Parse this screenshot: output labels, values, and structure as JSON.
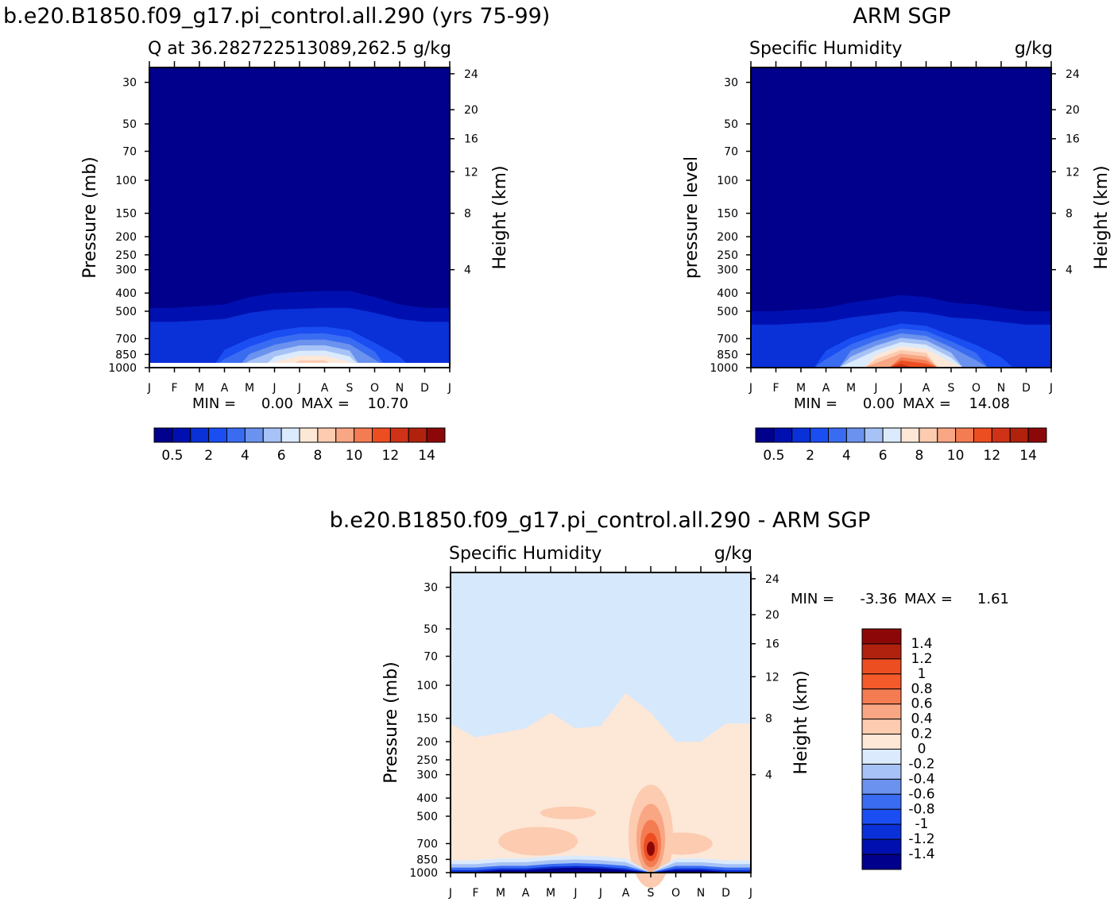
{
  "figure": {
    "title_left": "b.e20.B1850.f09_g17.pi_control.all.290 (yrs 75-99)",
    "title_right": "ARM SGP",
    "title_diff": "b.e20.B1850.f09_g17.pi_control.all.290 - ARM SGP"
  },
  "chart_data": [
    {
      "type": "heatmap",
      "panel": "model",
      "title": "Q at 36.282722513089,262.5",
      "units_label": "g/kg",
      "ylabel_left": "Pressure (mb)",
      "ylabel_right": "Height (km)",
      "x_ticks": [
        "J",
        "F",
        "M",
        "A",
        "M",
        "J",
        "J",
        "A",
        "S",
        "O",
        "N",
        "D",
        "J"
      ],
      "y_ticks": [
        "30",
        "50",
        "70",
        "100",
        "150",
        "200",
        "250",
        "300",
        "400",
        "500",
        "700",
        "850",
        "1000"
      ],
      "height_ticks": [
        "24",
        "20",
        "16",
        "12",
        "8",
        "4"
      ],
      "min_label": "MIN =",
      "min_value": "0.00",
      "max_label": "MAX =",
      "max_value": "10.70",
      "colorbar": {
        "labels": [
          "0.5",
          "2",
          "4",
          "6",
          "8",
          "10",
          "12",
          "14"
        ],
        "colors": [
          "#00008c",
          "#0010b0",
          "#0a30d8",
          "#1a4ef2",
          "#3a6cf2",
          "#6a92ee",
          "#a6c2f6",
          "#dbeafc",
          "#fde7d7",
          "#fccbb0",
          "#f8a684",
          "#f47c52",
          "#ec4e22",
          "#cf3216",
          "#b0220e",
          "#8c0808"
        ]
      },
      "contour_top_pressure_by_month": [
        480,
        480,
        470,
        460,
        420,
        400,
        395,
        390,
        390,
        420,
        460,
        480,
        480
      ],
      "near_surface_max_by_month": [
        1.5,
        2,
        3,
        5,
        7,
        9,
        10.5,
        10.5,
        9,
        6,
        4,
        2,
        1.5
      ]
    },
    {
      "type": "heatmap",
      "panel": "observed",
      "title": "Specific Humidity",
      "units_label": "g/kg",
      "ylabel_left": "pressure level",
      "ylabel_right": "Height (km)",
      "x_ticks": [
        "J",
        "F",
        "M",
        "A",
        "M",
        "J",
        "J",
        "A",
        "S",
        "O",
        "N",
        "D",
        "J"
      ],
      "y_ticks": [
        "30",
        "50",
        "70",
        "100",
        "150",
        "200",
        "250",
        "300",
        "400",
        "500",
        "700",
        "850",
        "1000"
      ],
      "height_ticks": [
        "24",
        "20",
        "16",
        "12",
        "8",
        "4"
      ],
      "min_label": "MIN =",
      "min_value": "0.00",
      "max_label": "MAX =",
      "max_value": "14.08",
      "colorbar": {
        "labels": [
          "0.5",
          "2",
          "4",
          "6",
          "8",
          "10",
          "12",
          "14"
        ],
        "colors": [
          "#00008c",
          "#0010b0",
          "#0a30d8",
          "#1a4ef2",
          "#3a6cf2",
          "#6a92ee",
          "#a6c2f6",
          "#dbeafc",
          "#fde7d7",
          "#fccbb0",
          "#f8a684",
          "#f47c52",
          "#ec4e22",
          "#cf3216",
          "#b0220e",
          "#8c0808"
        ]
      },
      "contour_top_pressure_by_month": [
        500,
        500,
        490,
        480,
        450,
        430,
        410,
        420,
        450,
        460,
        480,
        500,
        500
      ],
      "near_surface_max_by_month": [
        1.5,
        2,
        3,
        5,
        8,
        11,
        14,
        13,
        9,
        6,
        4,
        2,
        1.5
      ]
    },
    {
      "type": "heatmap",
      "panel": "difference",
      "title": "Specific Humidity",
      "units_label": "g/kg",
      "ylabel_left": "Pressure (mb)",
      "ylabel_right": "Height (km)",
      "x_ticks": [
        "J",
        "F",
        "M",
        "A",
        "M",
        "J",
        "J",
        "A",
        "S",
        "O",
        "N",
        "D",
        "J"
      ],
      "y_ticks": [
        "30",
        "50",
        "70",
        "100",
        "150",
        "200",
        "250",
        "300",
        "400",
        "500",
        "700",
        "850",
        "1000"
      ],
      "height_ticks": [
        "24",
        "20",
        "16",
        "12",
        "8",
        "4"
      ],
      "min_label": "MIN =",
      "min_value": "-3.36",
      "max_label": "MAX =",
      "max_value": "1.61",
      "colorbar": {
        "labels": [
          "1.4",
          "1.2",
          "1",
          "0.8",
          "0.6",
          "0.4",
          "0.2",
          "0",
          "-0.2",
          "-0.4",
          "-0.6",
          "-0.8",
          "-1",
          "-1.2",
          "-1.4"
        ],
        "colors": [
          "#8c0808",
          "#b0220e",
          "#ec4e22",
          "#f45a2a",
          "#f47c52",
          "#f8a684",
          "#fccbb0",
          "#fde7d7",
          "#dbeafc",
          "#a6c2f6",
          "#6a92ee",
          "#3a6cf2",
          "#1a4ef2",
          "#0a30d8",
          "#0010b0",
          "#00008c"
        ]
      },
      "zero_line_pressure_by_month": [
        160,
        190,
        180,
        170,
        140,
        170,
        165,
        110,
        140,
        200,
        200,
        160,
        160
      ]
    }
  ]
}
